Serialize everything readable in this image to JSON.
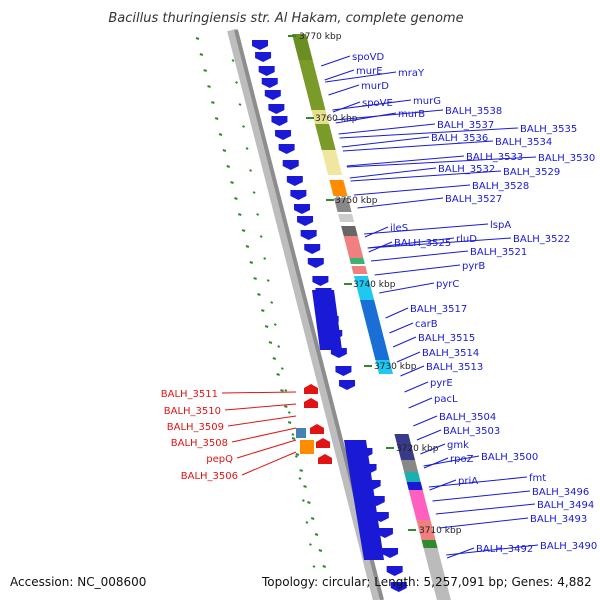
{
  "title": "Bacillus thuringiensis str. Al Hakam, complete genome",
  "accession": "Accession: NC_008600",
  "topology": "Topology: circular; Length: 5,257,091 bp; Genes: 4,882",
  "colors": {
    "forward_label": "#1a1ad6",
    "reverse_label": "#e01414",
    "cds_forward": "#1a1ad6",
    "cds_reverse": "#e01414",
    "backbone": "#999999",
    "gc_skew": "#2e8b2e"
  },
  "kbp_ticks": [
    "3770 kbp",
    "3760 kbp",
    "3750 kbp",
    "3740 kbp",
    "3730 kbp",
    "3720 kbp",
    "3710 kbp"
  ],
  "forward_genes": [
    "spoVD",
    "murE",
    "mraY",
    "murD",
    "spoVE",
    "murG",
    "murB",
    "BALH_3538",
    "BALH_3537",
    "BALH_3535",
    "BALH_3536",
    "BALH_3534",
    "BALH_3533",
    "BALH_3530",
    "BALH_3532",
    "BALH_3529",
    "BALH_3528",
    "BALH_3527",
    "ileS",
    "lspA",
    "BALH_3525",
    "rluD",
    "BALH_3522",
    "BALH_3521",
    "pyrB",
    "pyrC",
    "BALH_3517",
    "carB",
    "BALH_3515",
    "BALH_3514",
    "BALH_3513",
    "pyrE",
    "pacL",
    "BALH_3504",
    "BALH_3503",
    "gmk",
    "rpoZ",
    "BALH_3500",
    "priA",
    "fmt",
    "BALH_3496",
    "BALH_3494",
    "BALH_3493",
    "BALH_3492",
    "BALH_3490"
  ],
  "reverse_genes": [
    "BALH_3511",
    "BALH_3510",
    "BALH_3509",
    "BALH_3508",
    "pepQ",
    "BALH_3506"
  ]
}
